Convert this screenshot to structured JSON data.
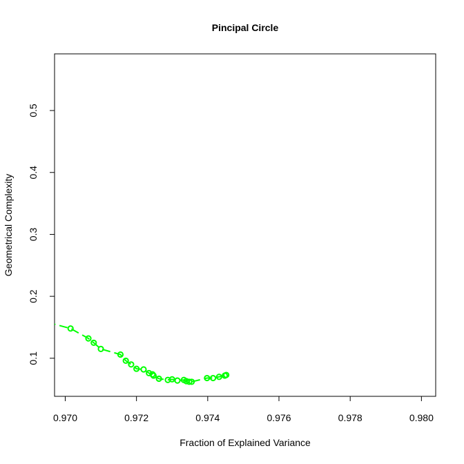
{
  "chart_data": {
    "type": "line",
    "title": "Pincipal Circle",
    "xlabel": "Fraction of Explained Variance",
    "ylabel": "Geometrical Complexity",
    "xlim": [
      0.9697,
      0.9804
    ],
    "ylim": [
      0.0385,
      0.5915
    ],
    "x_ticks": [
      0.97,
      0.972,
      0.974,
      0.976,
      0.978,
      0.98
    ],
    "x_tick_labels": [
      "0.970",
      "0.972",
      "0.974",
      "0.976",
      "0.978",
      "0.980"
    ],
    "y_ticks": [
      0.1,
      0.2,
      0.3,
      0.4,
      0.5
    ],
    "y_tick_labels": [
      "0.1",
      "0.2",
      "0.3",
      "0.4",
      "0.5"
    ],
    "grid": false,
    "color": "#00ff00",
    "series": [
      {
        "line_points": [
          [
            0.9695,
            0.158
          ],
          [
            0.97015,
            0.148
          ],
          [
            0.97065,
            0.132
          ],
          [
            0.9708,
            0.125
          ],
          [
            0.971,
            0.115
          ],
          [
            0.97155,
            0.106
          ],
          [
            0.9717,
            0.096
          ],
          [
            0.97185,
            0.09
          ],
          [
            0.972,
            0.083
          ],
          [
            0.9722,
            0.082
          ],
          [
            0.97235,
            0.076
          ],
          [
            0.97245,
            0.074
          ],
          [
            0.97248,
            0.072
          ],
          [
            0.97263,
            0.067
          ],
          [
            0.97288,
            0.065
          ],
          [
            0.973,
            0.066
          ],
          [
            0.97315,
            0.064
          ],
          [
            0.97333,
            0.065
          ],
          [
            0.9734,
            0.063
          ],
          [
            0.97348,
            0.062
          ],
          [
            0.97355,
            0.062
          ],
          [
            0.97398,
            0.068
          ],
          [
            0.97415,
            0.068
          ],
          [
            0.97432,
            0.07
          ],
          [
            0.97448,
            0.072
          ],
          [
            0.97452,
            0.073
          ]
        ],
        "markers": [
          [
            0.97015,
            0.148
          ],
          [
            0.97065,
            0.132
          ],
          [
            0.9708,
            0.125
          ],
          [
            0.971,
            0.115
          ],
          [
            0.97155,
            0.106
          ],
          [
            0.9717,
            0.096
          ],
          [
            0.97185,
            0.09
          ],
          [
            0.972,
            0.083
          ],
          [
            0.9722,
            0.082
          ],
          [
            0.97235,
            0.076
          ],
          [
            0.97245,
            0.074
          ],
          [
            0.97248,
            0.072
          ],
          [
            0.97263,
            0.067
          ],
          [
            0.97288,
            0.065
          ],
          [
            0.973,
            0.066
          ],
          [
            0.97315,
            0.064
          ],
          [
            0.97333,
            0.065
          ],
          [
            0.9734,
            0.063
          ],
          [
            0.97348,
            0.062
          ],
          [
            0.97355,
            0.062
          ],
          [
            0.97398,
            0.068
          ],
          [
            0.97415,
            0.068
          ],
          [
            0.97432,
            0.07
          ],
          [
            0.97448,
            0.072
          ],
          [
            0.97452,
            0.073
          ]
        ]
      }
    ]
  }
}
